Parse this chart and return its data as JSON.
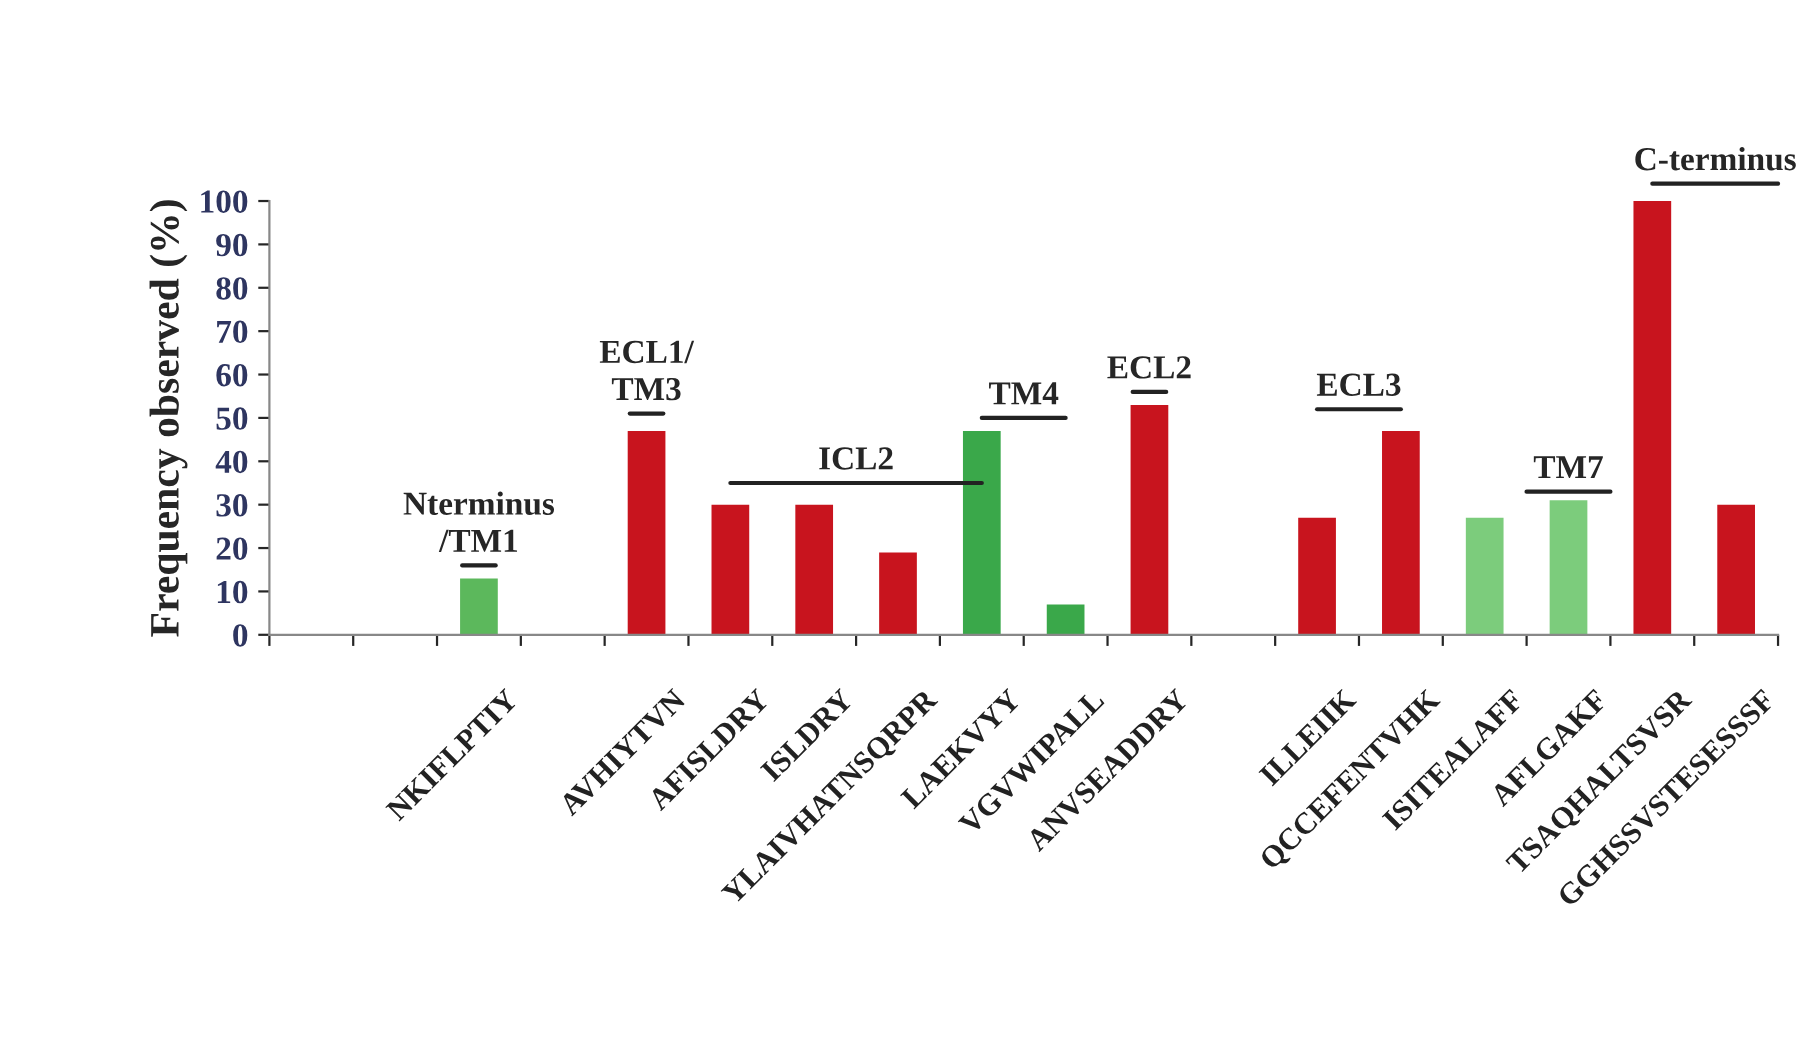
{
  "chart_data": {
    "type": "bar",
    "ylabel": "Frequency observed (%)",
    "categories": [
      null,
      null,
      "NKIFLPTIY",
      null,
      "AVHIYTVN",
      "AFISLDRY",
      "ISLDRY",
      "YLAIVHATNSQRPR",
      "LAEKVYY",
      "VGVWIPALL",
      "ANVSEADDRY",
      null,
      "ILLEIIK",
      "QCCEFENTVHK",
      "ISITEALAFF",
      "AFLGAKF",
      "TSAQHALTSVSR",
      "GGHSSVSTESESSSF"
    ],
    "values": [
      null,
      null,
      13,
      null,
      47,
      30,
      30,
      19,
      47,
      7,
      53,
      null,
      27,
      47,
      27,
      31,
      100,
      30
    ],
    "colors": [
      "#c8141e",
      "#c8141e",
      "#5cb85c",
      "#c8141e",
      "#c8141e",
      "#c8141e",
      "#c8141e",
      "#c8141e",
      "#3aa84a",
      "#3aa84a",
      "#c8141e",
      "#c8141e",
      "#c8141e",
      "#c8141e",
      "#7ccc7c",
      "#7ccc7c",
      "#c8141e",
      "#c8141e"
    ],
    "ylim": [
      0,
      100
    ],
    "yticks": [
      0,
      10,
      20,
      30,
      40,
      50,
      60,
      70,
      80,
      90,
      100
    ],
    "grid": false,
    "annotations": [
      "Nterminus\n/TM1",
      "ECL1/\nTM3",
      "ICL2",
      "TM4",
      "ECL2",
      "ECL3",
      "TM7",
      "C-terminus"
    ]
  }
}
